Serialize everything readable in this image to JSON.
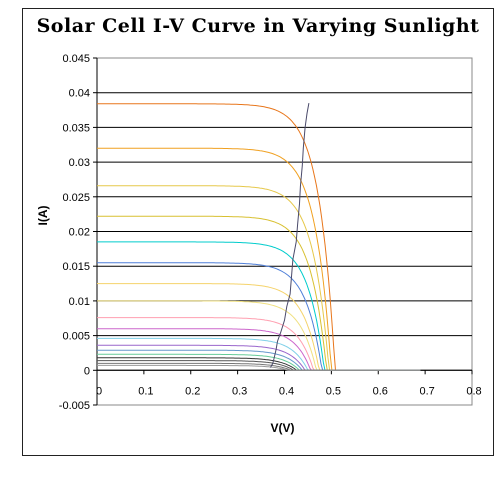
{
  "chart_data": {
    "type": "line",
    "title": "Solar Cell I-V Curve in Varying Sunlight",
    "xlabel": "V(V)",
    "ylabel": "I(A)",
    "xlim": [
      0,
      0.8
    ],
    "ylim": [
      -0.005,
      0.045
    ],
    "x_ticks": [
      "0",
      "0.1",
      "0.2",
      "0.3",
      "0.4",
      "0.5",
      "0.6",
      "0.7",
      "0.8"
    ],
    "y_ticks": [
      "0.045",
      "0.04",
      "0.035",
      "0.03",
      "0.025",
      "0.02",
      "0.015",
      "0.01",
      "0.005",
      "0",
      "-0.005"
    ],
    "grid": "horizontal",
    "legend": "none",
    "series_colors": [
      "#e8761b",
      "#f0a020",
      "#e6c84a",
      "#d8c030",
      "#00cccc",
      "#4f7fd8",
      "#f5d36b",
      "#f0e080",
      "#ff9fb0",
      "#cc66cc",
      "#7fd0e8",
      "#9966cc",
      "#6699cc",
      "#66cc99",
      "#333333",
      "#555555",
      "#777777",
      "#999999"
    ],
    "series": [
      {
        "isc": 0.0384,
        "voc": 0.508
      },
      {
        "isc": 0.032,
        "voc": 0.5
      },
      {
        "isc": 0.0266,
        "voc": 0.495
      },
      {
        "isc": 0.0222,
        "voc": 0.49
      },
      {
        "isc": 0.0185,
        "voc": 0.485
      },
      {
        "isc": 0.0155,
        "voc": 0.48
      },
      {
        "isc": 0.0125,
        "voc": 0.474
      },
      {
        "isc": 0.01,
        "voc": 0.468
      },
      {
        "isc": 0.0076,
        "voc": 0.462
      },
      {
        "isc": 0.006,
        "voc": 0.456
      },
      {
        "isc": 0.0046,
        "voc": 0.45
      },
      {
        "isc": 0.0036,
        "voc": 0.444
      },
      {
        "isc": 0.0029,
        "voc": 0.438
      },
      {
        "isc": 0.0023,
        "voc": 0.432
      },
      {
        "isc": 0.0018,
        "voc": 0.426
      },
      {
        "isc": 0.0014,
        "voc": 0.42
      },
      {
        "isc": 0.001,
        "voc": 0.414
      },
      {
        "isc": 0.0007,
        "voc": 0.408
      }
    ],
    "mpp_curve": [
      [
        0.37,
        0.0004
      ],
      [
        0.375,
        0.001
      ],
      [
        0.378,
        0.0018
      ],
      [
        0.382,
        0.003
      ],
      [
        0.385,
        0.0042
      ],
      [
        0.392,
        0.0055
      ],
      [
        0.4,
        0.0072
      ],
      [
        0.405,
        0.0092
      ],
      [
        0.412,
        0.011
      ],
      [
        0.415,
        0.0135
      ],
      [
        0.418,
        0.016
      ],
      [
        0.425,
        0.0185
      ],
      [
        0.428,
        0.021
      ],
      [
        0.432,
        0.024
      ],
      [
        0.434,
        0.0265
      ],
      [
        0.438,
        0.0295
      ],
      [
        0.44,
        0.032
      ],
      [
        0.444,
        0.035
      ],
      [
        0.448,
        0.037
      ],
      [
        0.452,
        0.0385
      ]
    ]
  }
}
